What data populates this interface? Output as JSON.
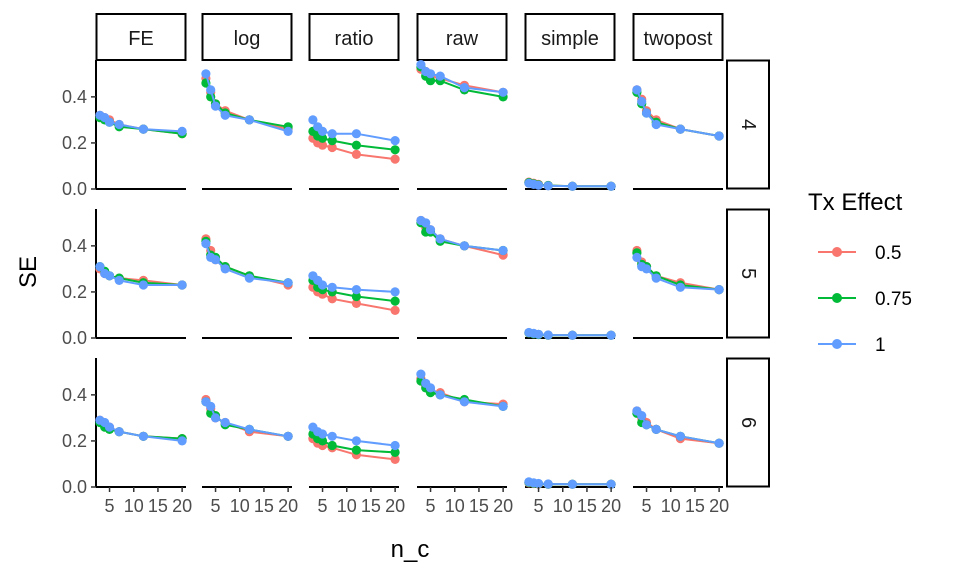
{
  "chart_data": {
    "type": "line",
    "facet_columns": [
      "FE",
      "log",
      "ratio",
      "raw",
      "simple",
      "twopost"
    ],
    "facet_rows": [
      "4",
      "5",
      "6"
    ],
    "xlabel": "n_c",
    "ylabel": "SE",
    "x": [
      3,
      4,
      5,
      7,
      12,
      20
    ],
    "x_ticks": [
      5,
      10,
      15,
      20
    ],
    "x_tick_labels": [
      "5",
      "10",
      "15",
      "20"
    ],
    "xlim": [
      2.2,
      20.8
    ],
    "ylim": [
      0,
      0.56
    ],
    "y_ticks": [
      0.0,
      0.2,
      0.4
    ],
    "y_tick_labels": [
      "0.0",
      "0.2",
      "0.4"
    ],
    "legend": {
      "title": "Tx Effect",
      "position": "right"
    },
    "series": [
      {
        "name": "0.5",
        "color": "#F8766D"
      },
      {
        "name": "0.75",
        "color": "#00BA38"
      },
      {
        "name": "1",
        "color": "#619CFF"
      }
    ],
    "panels": [
      {
        "row": "4",
        "col": "FE",
        "values": [
          [
            0.32,
            0.31,
            0.3,
            0.28,
            0.26,
            0.24
          ],
          [
            0.31,
            0.3,
            0.29,
            0.27,
            0.26,
            0.24
          ],
          [
            0.32,
            0.31,
            0.29,
            0.28,
            0.26,
            0.25
          ]
        ]
      },
      {
        "row": "4",
        "col": "log",
        "values": [
          [
            0.48,
            0.42,
            0.37,
            0.34,
            0.3,
            0.26
          ],
          [
            0.46,
            0.4,
            0.37,
            0.33,
            0.3,
            0.27
          ],
          [
            0.5,
            0.43,
            0.36,
            0.32,
            0.3,
            0.25
          ]
        ]
      },
      {
        "row": "4",
        "col": "ratio",
        "values": [
          [
            0.22,
            0.2,
            0.19,
            0.18,
            0.15,
            0.13
          ],
          [
            0.25,
            0.23,
            0.22,
            0.21,
            0.19,
            0.17
          ],
          [
            0.3,
            0.27,
            0.25,
            0.24,
            0.24,
            0.21
          ]
        ]
      },
      {
        "row": "4",
        "col": "raw",
        "values": [
          [
            0.52,
            0.51,
            0.49,
            0.48,
            0.45,
            0.42
          ],
          [
            0.53,
            0.49,
            0.47,
            0.47,
            0.43,
            0.4
          ],
          [
            0.54,
            0.51,
            0.5,
            0.49,
            0.44,
            0.42
          ]
        ]
      },
      {
        "row": "4",
        "col": "simple",
        "values": [
          [
            0.03,
            0.025,
            0.02,
            0.015,
            0.012,
            0.012
          ],
          [
            0.028,
            0.022,
            0.018,
            0.015,
            0.012,
            0.012
          ],
          [
            0.025,
            0.02,
            0.016,
            0.014,
            0.012,
            0.012
          ]
        ]
      },
      {
        "row": "4",
        "col": "twopost",
        "values": [
          [
            0.43,
            0.39,
            0.34,
            0.3,
            0.26,
            0.23
          ],
          [
            0.42,
            0.37,
            0.33,
            0.29,
            0.26,
            0.23
          ],
          [
            0.43,
            0.38,
            0.33,
            0.28,
            0.26,
            0.23
          ]
        ]
      },
      {
        "row": "5",
        "col": "FE",
        "values": [
          [
            0.3,
            0.28,
            0.27,
            0.26,
            0.25,
            0.23
          ],
          [
            0.31,
            0.29,
            0.27,
            0.26,
            0.24,
            0.23
          ],
          [
            0.31,
            0.28,
            0.27,
            0.25,
            0.23,
            0.23
          ]
        ]
      },
      {
        "row": "5",
        "col": "log",
        "values": [
          [
            0.43,
            0.38,
            0.34,
            0.31,
            0.27,
            0.23
          ],
          [
            0.42,
            0.36,
            0.35,
            0.31,
            0.27,
            0.24
          ],
          [
            0.41,
            0.35,
            0.34,
            0.3,
            0.26,
            0.24
          ]
        ]
      },
      {
        "row": "5",
        "col": "ratio",
        "values": [
          [
            0.22,
            0.2,
            0.19,
            0.17,
            0.15,
            0.12
          ],
          [
            0.25,
            0.22,
            0.21,
            0.2,
            0.18,
            0.16
          ],
          [
            0.27,
            0.25,
            0.23,
            0.22,
            0.21,
            0.2
          ]
        ]
      },
      {
        "row": "5",
        "col": "raw",
        "values": [
          [
            0.51,
            0.48,
            0.47,
            0.43,
            0.4,
            0.36
          ],
          [
            0.5,
            0.46,
            0.46,
            0.42,
            0.4,
            0.38
          ],
          [
            0.51,
            0.5,
            0.47,
            0.43,
            0.4,
            0.38
          ]
        ]
      },
      {
        "row": "5",
        "col": "simple",
        "values": [
          [
            0.022,
            0.018,
            0.015,
            0.012,
            0.012,
            0.012
          ],
          [
            0.022,
            0.018,
            0.015,
            0.012,
            0.012,
            0.012
          ],
          [
            0.024,
            0.02,
            0.016,
            0.013,
            0.012,
            0.012
          ]
        ]
      },
      {
        "row": "5",
        "col": "twopost",
        "values": [
          [
            0.38,
            0.33,
            0.31,
            0.27,
            0.24,
            0.21
          ],
          [
            0.37,
            0.32,
            0.31,
            0.27,
            0.23,
            0.21
          ],
          [
            0.35,
            0.31,
            0.3,
            0.26,
            0.22,
            0.21
          ]
        ]
      },
      {
        "row": "6",
        "col": "FE",
        "values": [
          [
            0.29,
            0.27,
            0.26,
            0.24,
            0.22,
            0.21
          ],
          [
            0.28,
            0.26,
            0.25,
            0.24,
            0.22,
            0.21
          ],
          [
            0.29,
            0.28,
            0.26,
            0.24,
            0.22,
            0.2
          ]
        ]
      },
      {
        "row": "6",
        "col": "log",
        "values": [
          [
            0.38,
            0.34,
            0.3,
            0.28,
            0.24,
            0.22
          ],
          [
            0.37,
            0.32,
            0.31,
            0.27,
            0.25,
            0.22
          ],
          [
            0.37,
            0.35,
            0.3,
            0.28,
            0.25,
            0.22
          ]
        ]
      },
      {
        "row": "6",
        "col": "ratio",
        "values": [
          [
            0.21,
            0.19,
            0.18,
            0.17,
            0.14,
            0.12
          ],
          [
            0.23,
            0.21,
            0.2,
            0.18,
            0.16,
            0.15
          ],
          [
            0.26,
            0.24,
            0.23,
            0.22,
            0.2,
            0.18
          ]
        ]
      },
      {
        "row": "6",
        "col": "raw",
        "values": [
          [
            0.47,
            0.44,
            0.42,
            0.41,
            0.37,
            0.36
          ],
          [
            0.46,
            0.43,
            0.41,
            0.4,
            0.38,
            0.35
          ],
          [
            0.49,
            0.45,
            0.43,
            0.4,
            0.37,
            0.35
          ]
        ]
      },
      {
        "row": "6",
        "col": "simple",
        "values": [
          [
            0.018,
            0.015,
            0.013,
            0.012,
            0.012,
            0.012
          ],
          [
            0.02,
            0.016,
            0.014,
            0.012,
            0.012,
            0.012
          ],
          [
            0.022,
            0.018,
            0.015,
            0.013,
            0.012,
            0.012
          ]
        ]
      },
      {
        "row": "6",
        "col": "twopost",
        "values": [
          [
            0.33,
            0.3,
            0.28,
            0.25,
            0.21,
            0.19
          ],
          [
            0.32,
            0.28,
            0.27,
            0.25,
            0.22,
            0.19
          ],
          [
            0.33,
            0.31,
            0.27,
            0.25,
            0.22,
            0.19
          ]
        ]
      }
    ]
  }
}
